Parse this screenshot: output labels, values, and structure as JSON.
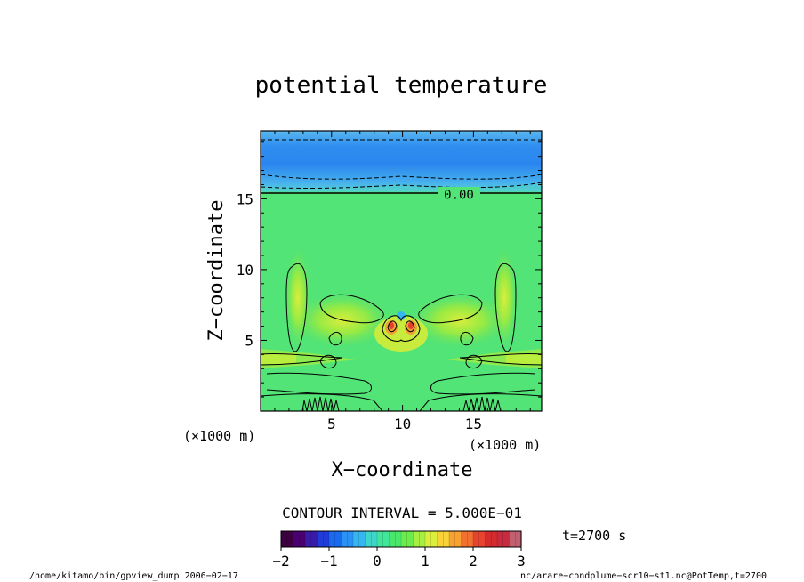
{
  "chart_data": {
    "type": "heatmap",
    "title": "potential temperature",
    "xlabel": "X−coordinate",
    "ylabel": "Z−coordinate",
    "xlim": [
      0,
      19.8
    ],
    "ylim": [
      0,
      19.8
    ],
    "x_ticks": [
      {
        "value": 5,
        "label": "5"
      },
      {
        "value": 10,
        "label": "10"
      },
      {
        "value": 15,
        "label": "15"
      }
    ],
    "y_ticks": [
      {
        "value": 5,
        "label": "5"
      },
      {
        "value": 10,
        "label": "10"
      },
      {
        "value": 15,
        "label": "15"
      }
    ],
    "x_scale_note": "(×1000 m)",
    "y_scale_note": "(×1000 m)",
    "contour_label": "0.00",
    "contour_label_z": 15.3,
    "contour_interval_text": "CONTOUR INTERVAL = 5.000E−01",
    "time_text": "t=2700 s",
    "colorbar": {
      "min": -2,
      "max": 3,
      "tick_values": [
        -2,
        -1,
        0,
        1,
        2,
        3
      ],
      "tick_labels": [
        "−2",
        "−1",
        "0",
        "1",
        "2",
        "3"
      ],
      "colors": [
        "#3d0040",
        "#4a006e",
        "#3a1aa8",
        "#1f3cd8",
        "#1a6aee",
        "#2a92f4",
        "#36b6f0",
        "#3ed6c8",
        "#40e69a",
        "#4ae86a",
        "#6cec4c",
        "#a6ee40",
        "#dcee3c",
        "#f8d238",
        "#f8a232",
        "#f27030",
        "#e6442e",
        "#d42c2c",
        "#c82a40",
        "#c06070"
      ]
    },
    "footer_left": "/home/kitamo/bin/gpview_dump  2006−02−17",
    "footer_right": "nc/arare−condplume−scr10−st1.nc@PotTemp,t=2700"
  }
}
